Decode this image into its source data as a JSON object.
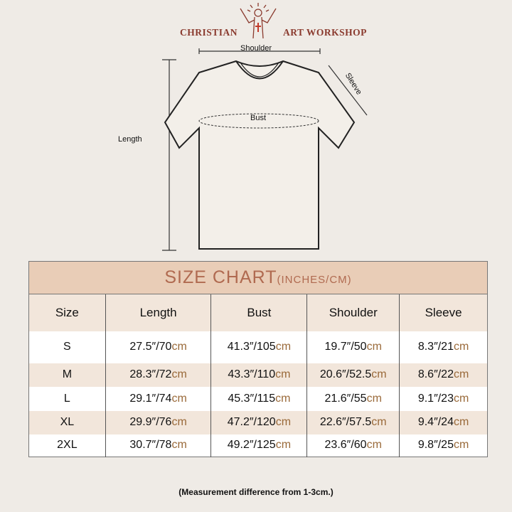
{
  "brand": {
    "left": "CHRISTIAN",
    "right": "ART WORKSHOP"
  },
  "diagram": {
    "shoulder": "Shoulder",
    "sleeve": "Sleeve",
    "bust": "Bust",
    "length": "Length"
  },
  "table": {
    "title": "SIZE CHART",
    "unit": "(INCHES/CM)",
    "headers": [
      "Size",
      "Length",
      "Bust",
      "Shoulder",
      "Sleeve"
    ],
    "rows": [
      {
        "size": "S",
        "cells": [
          [
            "27.5″/70",
            "cm"
          ],
          [
            "41.3″/105",
            "cm"
          ],
          [
            "19.7″/50",
            "cm"
          ],
          [
            "8.3″/21",
            "cm"
          ]
        ]
      },
      {
        "size": "M",
        "cells": [
          [
            "28.3″/72",
            "cm"
          ],
          [
            "43.3″/110",
            "cm"
          ],
          [
            "20.6″/52.5",
            "cm"
          ],
          [
            "8.6″/22",
            "cm"
          ]
        ]
      },
      {
        "size": "L",
        "cells": [
          [
            "29.1″/74",
            "cm"
          ],
          [
            "45.3″/115",
            "cm"
          ],
          [
            "21.6″/55",
            "cm"
          ],
          [
            "9.1″/23",
            "cm"
          ]
        ]
      },
      {
        "size": "XL",
        "cells": [
          [
            "29.9″/76",
            "cm"
          ],
          [
            "47.2″/120",
            "cm"
          ],
          [
            "22.6″/57.5",
            "cm"
          ],
          [
            "9.4″/24",
            "cm"
          ]
        ]
      },
      {
        "size": "2XL",
        "cells": [
          [
            "30.7″/78",
            "cm"
          ],
          [
            "49.2″/125",
            "cm"
          ],
          [
            "23.6″/60",
            "cm"
          ],
          [
            "9.8″/25",
            "cm"
          ]
        ]
      }
    ]
  },
  "note": "(Measurement difference from 1-3cm.)"
}
